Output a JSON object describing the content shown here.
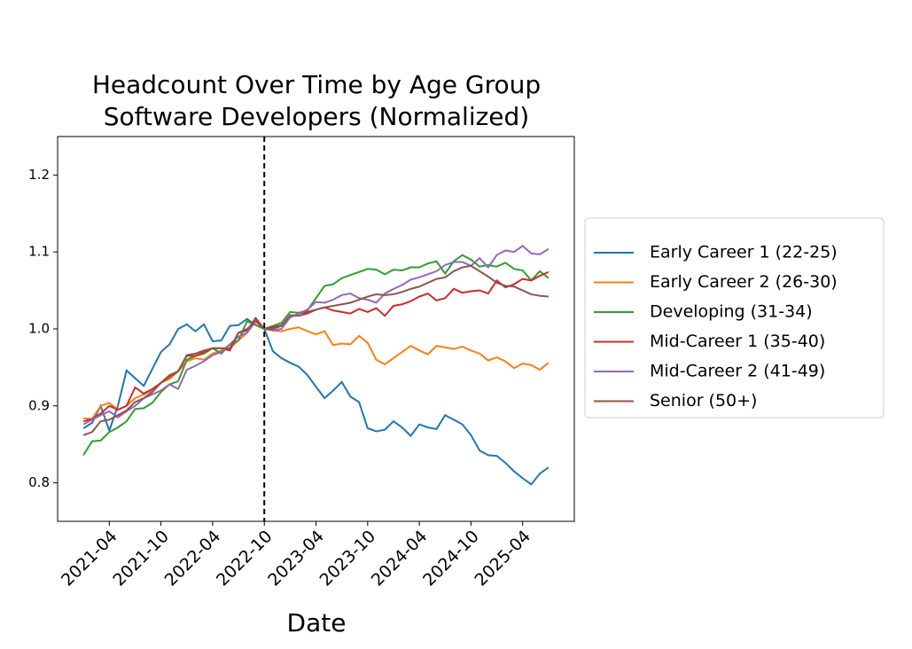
{
  "chart_data": {
    "type": "line",
    "title": "Headcount Over Time by Age Group",
    "subtitle": "Software Developers (Normalized)",
    "x_label": "Date",
    "x": [
      "2021-01",
      "2021-02",
      "2021-03",
      "2021-04",
      "2021-05",
      "2021-06",
      "2021-07",
      "2021-08",
      "2021-09",
      "2021-10",
      "2021-11",
      "2021-12",
      "2022-01",
      "2022-02",
      "2022-03",
      "2022-04",
      "2022-05",
      "2022-06",
      "2022-07",
      "2022-08",
      "2022-09",
      "2022-10",
      "2022-11",
      "2022-12",
      "2023-01",
      "2023-02",
      "2023-03",
      "2023-04",
      "2023-05",
      "2023-06",
      "2023-07",
      "2023-08",
      "2023-09",
      "2023-10",
      "2023-11",
      "2023-12",
      "2024-01",
      "2024-02",
      "2024-03",
      "2024-04",
      "2024-05",
      "2024-06",
      "2024-07",
      "2024-08",
      "2024-09",
      "2024-10",
      "2024-11",
      "2024-12",
      "2025-01",
      "2025-02",
      "2025-03",
      "2025-04",
      "2025-05",
      "2025-06",
      "2025-07"
    ],
    "series": [
      {
        "name": "Early Career 1 (22-25)",
        "color": "#1f77b4",
        "values": [
          0.871,
          0.878,
          0.9,
          0.868,
          0.9,
          0.946,
          0.936,
          0.926,
          0.948,
          0.97,
          0.98,
          1.0,
          1.006,
          0.997,
          1.006,
          0.984,
          0.985,
          1.004,
          1.005,
          1.013,
          1.005,
          1.0,
          0.971,
          0.962,
          0.956,
          0.951,
          0.94,
          0.925,
          0.91,
          0.92,
          0.931,
          0.912,
          0.905,
          0.871,
          0.867,
          0.869,
          0.88,
          0.872,
          0.861,
          0.876,
          0.872,
          0.87,
          0.888,
          0.882,
          0.876,
          0.862,
          0.842,
          0.836,
          0.835,
          0.826,
          0.815,
          0.806,
          0.798,
          0.812,
          0.82
        ]
      },
      {
        "name": "Early Career 2 (26-30)",
        "color": "#ff7f0e",
        "values": [
          0.884,
          0.883,
          0.9,
          0.904,
          0.895,
          0.9,
          0.91,
          0.915,
          0.92,
          0.93,
          0.935,
          0.945,
          0.958,
          0.962,
          0.96,
          0.968,
          0.972,
          0.975,
          0.985,
          0.995,
          1.01,
          1.0,
          0.998,
          0.997,
          1.0,
          1.002,
          0.997,
          0.993,
          0.997,
          0.979,
          0.981,
          0.98,
          0.991,
          0.982,
          0.96,
          0.954,
          0.962,
          0.97,
          0.978,
          0.972,
          0.967,
          0.978,
          0.976,
          0.974,
          0.977,
          0.972,
          0.968,
          0.959,
          0.963,
          0.958,
          0.949,
          0.955,
          0.953,
          0.947,
          0.956
        ]
      },
      {
        "name": "Developing (31-34)",
        "color": "#2ca02c",
        "values": [
          0.836,
          0.854,
          0.855,
          0.866,
          0.872,
          0.88,
          0.896,
          0.897,
          0.904,
          0.918,
          0.928,
          0.932,
          0.96,
          0.965,
          0.968,
          0.975,
          0.968,
          0.98,
          0.985,
          1.01,
          1.005,
          1.0,
          1.004,
          1.008,
          1.022,
          1.021,
          1.024,
          1.04,
          1.056,
          1.058,
          1.066,
          1.07,
          1.074,
          1.078,
          1.077,
          1.071,
          1.077,
          1.076,
          1.08,
          1.08,
          1.085,
          1.088,
          1.072,
          1.088,
          1.096,
          1.09,
          1.081,
          1.083,
          1.081,
          1.086,
          1.078,
          1.076,
          1.063,
          1.075,
          1.066
        ]
      },
      {
        "name": "Mid-Career 1 (35-40)",
        "color": "#d62728",
        "values": [
          0.88,
          0.883,
          0.89,
          0.9,
          0.895,
          0.9,
          0.924,
          0.916,
          0.922,
          0.93,
          0.938,
          0.945,
          0.965,
          0.965,
          0.97,
          0.975,
          0.975,
          0.972,
          0.995,
          0.998,
          1.014,
          1.0,
          1.002,
          1.005,
          1.015,
          1.02,
          1.022,
          1.025,
          1.028,
          1.024,
          1.022,
          1.02,
          1.026,
          1.022,
          1.027,
          1.017,
          1.03,
          1.032,
          1.036,
          1.042,
          1.046,
          1.037,
          1.04,
          1.052,
          1.047,
          1.049,
          1.05,
          1.046,
          1.063,
          1.054,
          1.058,
          1.065,
          1.063,
          1.069,
          1.074
        ]
      },
      {
        "name": "Mid-Career 2 (41-49)",
        "color": "#9467bd",
        "values": [
          0.876,
          0.882,
          0.888,
          0.893,
          0.885,
          0.893,
          0.9,
          0.91,
          0.915,
          0.92,
          0.928,
          0.922,
          0.947,
          0.952,
          0.958,
          0.966,
          0.97,
          0.98,
          0.99,
          0.995,
          1.01,
          1.0,
          0.998,
          1.0,
          1.015,
          1.02,
          1.025,
          1.035,
          1.034,
          1.038,
          1.044,
          1.046,
          1.04,
          1.038,
          1.034,
          1.046,
          1.052,
          1.057,
          1.064,
          1.067,
          1.071,
          1.075,
          1.083,
          1.087,
          1.087,
          1.082,
          1.092,
          1.08,
          1.096,
          1.102,
          1.1,
          1.108,
          1.098,
          1.097,
          1.104
        ]
      },
      {
        "name": "Senior (50+)",
        "color": "#8c564b",
        "values": [
          0.862,
          0.866,
          0.88,
          0.882,
          0.888,
          0.894,
          0.905,
          0.91,
          0.918,
          0.93,
          0.94,
          0.945,
          0.966,
          0.968,
          0.972,
          0.975,
          0.975,
          0.975,
          0.995,
          1.0,
          1.01,
          1.0,
          1.0,
          1.004,
          1.018,
          1.017,
          1.02,
          1.025,
          1.028,
          1.03,
          1.032,
          1.034,
          1.038,
          1.042,
          1.045,
          1.044,
          1.045,
          1.048,
          1.052,
          1.055,
          1.06,
          1.065,
          1.067,
          1.075,
          1.08,
          1.082,
          1.075,
          1.068,
          1.06,
          1.056,
          1.055,
          1.05,
          1.045,
          1.043,
          1.042
        ]
      }
    ],
    "xlim": [
      "2020-10",
      "2025-10"
    ],
    "xticks": [
      "2021-04",
      "2021-10",
      "2022-04",
      "2022-10",
      "2023-04",
      "2023-10",
      "2024-04",
      "2024-10",
      "2025-04"
    ],
    "ylim": [
      0.75,
      1.25
    ],
    "yticks": [
      0.8,
      0.9,
      {
        "value": 1,
        "label": "1.0"
      },
      1.1,
      1.2
    ],
    "vline": "2022-10",
    "legend": "outside right",
    "grid": false
  }
}
